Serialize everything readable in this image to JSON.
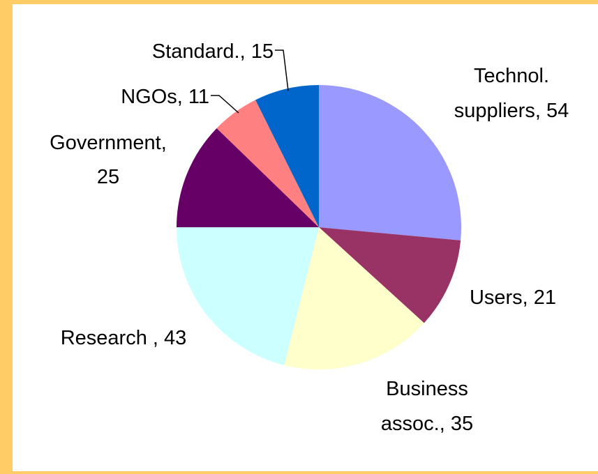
{
  "chart_data": {
    "type": "pie",
    "title": "",
    "slices": [
      {
        "label_lines": [
          "Technol.",
          "suppliers, 54"
        ],
        "category": "Technol. suppliers",
        "value": 54,
        "color": "#9999ff"
      },
      {
        "label_lines": [
          "Users, 21"
        ],
        "category": "Users",
        "value": 21,
        "color": "#993366"
      },
      {
        "label_lines": [
          "Business",
          "assoc., 35"
        ],
        "category": "Business assoc.",
        "value": 35,
        "color": "#ffffcc"
      },
      {
        "label_lines": [
          "Research , 43"
        ],
        "category": "Research",
        "value": 43,
        "color": "#ccffff"
      },
      {
        "label_lines": [
          "Government,",
          "25"
        ],
        "category": "Government",
        "value": 25,
        "color": "#660066"
      },
      {
        "label_lines": [
          "NGOs, 11"
        ],
        "category": "NGOs",
        "value": 11,
        "color": "#ff8080"
      },
      {
        "label_lines": [
          "Standard., 15"
        ],
        "category": "Standard.",
        "value": 15,
        "color": "#0066cc"
      }
    ],
    "start": "12 o'clock",
    "direction": "clockwise",
    "legend": "none"
  },
  "colors": {
    "frame": "#ffcc66",
    "background": "#ffffff"
  }
}
